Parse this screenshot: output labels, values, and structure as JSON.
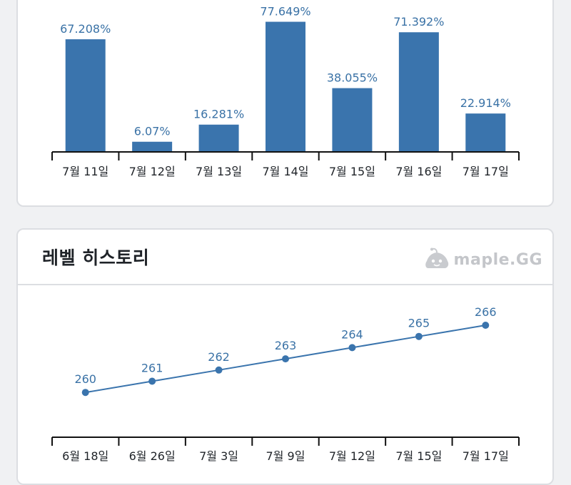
{
  "level_card": {
    "title": "레벨 히스토리",
    "brand": "maple.GG"
  },
  "colors": {
    "bar": "#3a74ad",
    "line": "#3a74ad",
    "axis": "#111111",
    "label": "#3a72a6"
  },
  "chart_data": [
    {
      "type": "bar",
      "title": "",
      "categories": [
        "7월 11일",
        "7월 12일",
        "7월 13일",
        "7월 14일",
        "7월 15일",
        "7월 16일",
        "7월 17일"
      ],
      "values": [
        67.208,
        6.07,
        16.281,
        77.649,
        38.055,
        71.392,
        22.914
      ],
      "value_labels": [
        "67.208%",
        "6.07%",
        "16.281%",
        "77.649%",
        "38.055%",
        "71.392%",
        "22.914%"
      ],
      "ylim": [
        0,
        80
      ],
      "grid": false
    },
    {
      "type": "line",
      "title": "레벨 히스토리",
      "categories": [
        "6월 18일",
        "6월 26일",
        "7월 3일",
        "7월 9일",
        "7월 12일",
        "7월 15일",
        "7월 17일"
      ],
      "values": [
        260,
        261,
        262,
        263,
        264,
        265,
        266
      ],
      "value_labels": [
        "260",
        "261",
        "262",
        "263",
        "264",
        "265",
        "266"
      ],
      "ylim": [
        256,
        266
      ],
      "grid": false
    }
  ]
}
